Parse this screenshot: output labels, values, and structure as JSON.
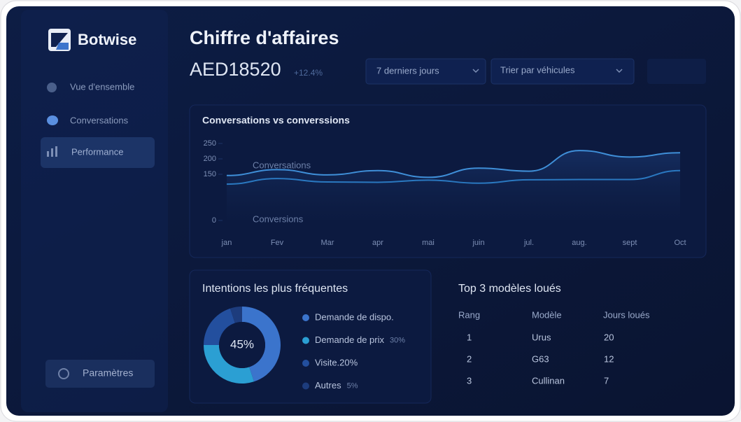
{
  "sidebar": {
    "logo": "Botwise",
    "nav": [
      "Vue d'ensemble",
      "Conversations",
      "Performance"
    ],
    "settings": "Paramètres"
  },
  "header": {
    "title": "Chiffre d'affaires",
    "amount": "AED18520",
    "change": "+12.4%",
    "filters": [
      "7 derniers jours",
      "Trier par véhicules"
    ]
  },
  "chart_data": [
    {
      "type": "line",
      "title": "Conversations vs converssions",
      "categories": [
        "jan",
        "Fev",
        "Mar",
        "apr",
        "mai",
        "juin",
        "jul.",
        "aug.",
        "sept",
        "Oct"
      ],
      "series": [
        {
          "name": "Conversations",
          "color": "#3f8fd8",
          "values": [
            146,
            165,
            148,
            162,
            140,
            170,
            160,
            227,
            206,
            220
          ]
        },
        {
          "name": "Conversions",
          "color": "#2a78c0",
          "values": [
            118,
            136,
            125,
            124,
            131,
            121,
            132,
            133,
            133,
            162
          ]
        }
      ],
      "ylim": [
        0,
        250
      ],
      "yticks": [
        0,
        150,
        200,
        250
      ]
    },
    {
      "type": "pie",
      "title": "Intentions les plus fréquentes",
      "categories": [
        "Demande de dispo.",
        "Demande de prix",
        "Visite.20%",
        "Autres"
      ],
      "values": [
        45,
        30,
        20,
        5
      ],
      "value_labels": [
        "45%",
        "30%",
        null,
        "5%"
      ],
      "colors": [
        "#3b74cc",
        "#2b9fd3",
        "#234f9e",
        "#1d3c7d"
      ]
    }
  ],
  "table": {
    "title": "Top 3 modèles loués",
    "columns": [
      "Rang",
      "Modèle",
      "Jours loués"
    ],
    "rows": [
      [
        "1",
        "Urus",
        "20"
      ],
      [
        "2",
        "G63",
        "12"
      ],
      [
        "3",
        "Cullinan",
        "7"
      ]
    ]
  }
}
